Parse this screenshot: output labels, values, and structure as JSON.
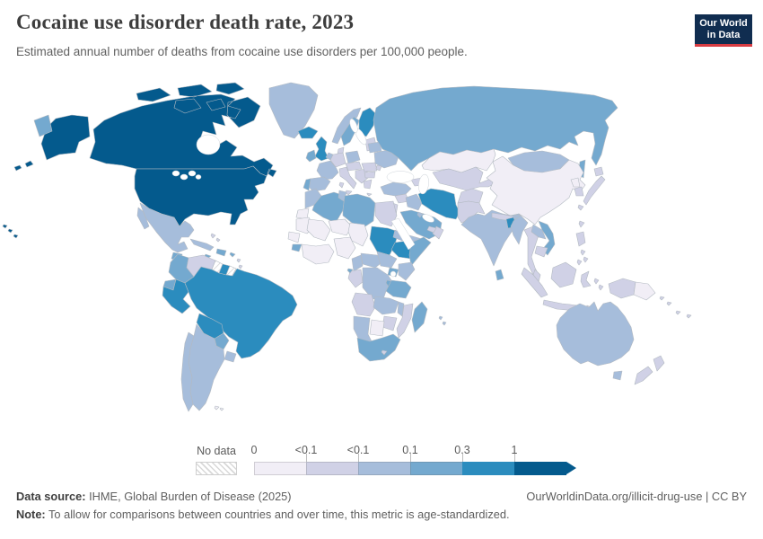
{
  "header": {
    "title": "Cocaine use disorder death rate, 2023",
    "subtitle": "Estimated annual number of deaths from cocaine use disorders per 100,000 people."
  },
  "logo": {
    "line1": "Our World",
    "line2": "in Data"
  },
  "legend": {
    "no_data_label": "No data",
    "tick_labels": [
      "0",
      "<0.1",
      "<0.1",
      "0.1",
      "0.3",
      "1"
    ],
    "colors": [
      "#f1eef6",
      "#d0d1e6",
      "#a6bddb",
      "#74a9cf",
      "#2b8cbe",
      "#045a8d"
    ],
    "no_data_pattern": "diagonal-hatch"
  },
  "footer": {
    "source_label": "Data source:",
    "source_text": " IHME, Global Burden of Disease (2025)",
    "note_label": "Note:",
    "note_text": " To allow for comparisons between countries and over time, this metric is age-standardized.",
    "link_text": "OurWorldinData.org/illicit-drug-use | CC BY"
  },
  "chart_data": {
    "type": "heatmap",
    "subtype": "choropleth-world-map",
    "title": "Cocaine use disorder death rate, 2023",
    "unit": "deaths per 100,000 people",
    "legend_bins": [
      "0",
      "<0.1",
      "<0.1",
      "0.1",
      "0.3",
      "1"
    ],
    "legend_position": "bottom",
    "bin_note": "bin is an index 0-5 into legend colors (light to dark); nd = no data",
    "countries": [
      {
        "id": "canada",
        "bin": 5
      },
      {
        "id": "alaska",
        "bin": 5
      },
      {
        "id": "hawaii",
        "bin": 5
      },
      {
        "id": "united-states",
        "bin": 5
      },
      {
        "id": "greenland",
        "bin": 2
      },
      {
        "id": "iceland",
        "bin": 4
      },
      {
        "id": "russia-east",
        "bin": 3
      },
      {
        "id": "mexico",
        "bin": 2
      },
      {
        "id": "guatemala",
        "bin": 3
      },
      {
        "id": "honduras-nicaragua",
        "bin": 3
      },
      {
        "id": "costa-rica-panama",
        "bin": 4
      },
      {
        "id": "cuba",
        "bin": 2
      },
      {
        "id": "hispaniola",
        "bin": 3
      },
      {
        "id": "jamaica",
        "bin": 3
      },
      {
        "id": "puerto-rico",
        "bin": 3
      },
      {
        "id": "bahamas",
        "bin": 1
      },
      {
        "id": "lesser-antilles",
        "bin": 1
      },
      {
        "id": "colombia",
        "bin": 3
      },
      {
        "id": "venezuela",
        "bin": 1
      },
      {
        "id": "guyana",
        "bin": "nd"
      },
      {
        "id": "suriname",
        "bin": 4
      },
      {
        "id": "french-guiana",
        "bin": "nd"
      },
      {
        "id": "ecuador",
        "bin": 3
      },
      {
        "id": "peru",
        "bin": 4
      },
      {
        "id": "brazil",
        "bin": 4
      },
      {
        "id": "bolivia",
        "bin": 4
      },
      {
        "id": "paraguay",
        "bin": 3
      },
      {
        "id": "uruguay",
        "bin": 2
      },
      {
        "id": "argentina",
        "bin": 2
      },
      {
        "id": "chile",
        "bin": 2
      },
      {
        "id": "falkland-islands",
        "bin": 0
      },
      {
        "id": "united-kingdom",
        "bin": 4
      },
      {
        "id": "ireland",
        "bin": 3
      },
      {
        "id": "norway",
        "bin": 2
      },
      {
        "id": "sweden",
        "bin": 3
      },
      {
        "id": "finland",
        "bin": 4
      },
      {
        "id": "denmark",
        "bin": 1
      },
      {
        "id": "baltic-states",
        "bin": 1
      },
      {
        "id": "germany",
        "bin": 1
      },
      {
        "id": "benelux",
        "bin": 2
      },
      {
        "id": "poland",
        "bin": 2
      },
      {
        "id": "france",
        "bin": 2
      },
      {
        "id": "spain",
        "bin": 2
      },
      {
        "id": "portugal",
        "bin": 3
      },
      {
        "id": "italy",
        "bin": 1
      },
      {
        "id": "sicily",
        "bin": 1
      },
      {
        "id": "sardinia",
        "bin": 1
      },
      {
        "id": "czech-hungary",
        "bin": 1
      },
      {
        "id": "balkans",
        "bin": 1
      },
      {
        "id": "greece",
        "bin": 1
      },
      {
        "id": "crete",
        "bin": 1
      },
      {
        "id": "romania",
        "bin": 1
      },
      {
        "id": "bulgaria",
        "bin": 1
      },
      {
        "id": "ukraine",
        "bin": 2
      },
      {
        "id": "belarus",
        "bin": 2
      },
      {
        "id": "moldova",
        "bin": 1
      },
      {
        "id": "russia",
        "bin": 3
      },
      {
        "id": "sakhalin",
        "bin": 3
      },
      {
        "id": "kazakhstan",
        "bin": 0
      },
      {
        "id": "central-asia",
        "bin": 1
      },
      {
        "id": "caucasus",
        "bin": 1
      },
      {
        "id": "turkey",
        "bin": 2
      },
      {
        "id": "syria",
        "bin": 1
      },
      {
        "id": "levant",
        "bin": 1
      },
      {
        "id": "iraq",
        "bin": 2
      },
      {
        "id": "iran",
        "bin": 4
      },
      {
        "id": "afghanistan",
        "bin": 1
      },
      {
        "id": "pakistan",
        "bin": 1
      },
      {
        "id": "saudi-arabia",
        "bin": 3
      },
      {
        "id": "yemen",
        "bin": 2
      },
      {
        "id": "oman",
        "bin": 1
      },
      {
        "id": "uae",
        "bin": 1
      },
      {
        "id": "kuwait",
        "bin": 2
      },
      {
        "id": "morocco",
        "bin": 2
      },
      {
        "id": "western-sahara",
        "bin": 0
      },
      {
        "id": "algeria",
        "bin": 3
      },
      {
        "id": "tunisia",
        "bin": 2
      },
      {
        "id": "libya",
        "bin": 3
      },
      {
        "id": "egypt",
        "bin": 1
      },
      {
        "id": "mauritania",
        "bin": 0
      },
      {
        "id": "mali",
        "bin": 0
      },
      {
        "id": "niger",
        "bin": 0
      },
      {
        "id": "chad",
        "bin": 0
      },
      {
        "id": "sudan",
        "bin": 4
      },
      {
        "id": "eritrea",
        "bin": 2
      },
      {
        "id": "ethiopia",
        "bin": 4
      },
      {
        "id": "somalia",
        "bin": 3
      },
      {
        "id": "senegal",
        "bin": 0
      },
      {
        "id": "guinea",
        "bin": 3
      },
      {
        "id": "west-africa",
        "bin": 0
      },
      {
        "id": "nigeria",
        "bin": 0
      },
      {
        "id": "cameroon",
        "bin": 2
      },
      {
        "id": "central-african-republic",
        "bin": 2
      },
      {
        "id": "south-sudan",
        "bin": 2
      },
      {
        "id": "uganda",
        "bin": 3
      },
      {
        "id": "kenya",
        "bin": 2
      },
      {
        "id": "gabon-congo",
        "bin": 1
      },
      {
        "id": "equatorial-guinea",
        "bin": 3
      },
      {
        "id": "dr-congo",
        "bin": 2
      },
      {
        "id": "rwanda-burundi",
        "bin": 3
      },
      {
        "id": "tanzania",
        "bin": 3
      },
      {
        "id": "angola",
        "bin": 1
      },
      {
        "id": "zambia",
        "bin": 2
      },
      {
        "id": "malawi",
        "bin": 2
      },
      {
        "id": "mozambique",
        "bin": 1
      },
      {
        "id": "zimbabwe",
        "bin": 1
      },
      {
        "id": "botswana",
        "bin": 0
      },
      {
        "id": "namibia",
        "bin": 2
      },
      {
        "id": "south-africa",
        "bin": 3
      },
      {
        "id": "lesotho",
        "bin": 1
      },
      {
        "id": "madagascar",
        "bin": 3
      },
      {
        "id": "mauritius",
        "bin": 2
      },
      {
        "id": "mongolia",
        "bin": 2
      },
      {
        "id": "china",
        "bin": 0
      },
      {
        "id": "taiwan",
        "bin": 1
      },
      {
        "id": "north-korea",
        "bin": 0
      },
      {
        "id": "south-korea",
        "bin": 1
      },
      {
        "id": "japan",
        "bin": 1
      },
      {
        "id": "india",
        "bin": 2
      },
      {
        "id": "nepal",
        "bin": 1
      },
      {
        "id": "bhutan",
        "bin": 2
      },
      {
        "id": "bangladesh",
        "bin": 4
      },
      {
        "id": "sri-lanka",
        "bin": 3
      },
      {
        "id": "myanmar",
        "bin": 2
      },
      {
        "id": "thailand",
        "bin": 1
      },
      {
        "id": "laos",
        "bin": 2
      },
      {
        "id": "vietnam",
        "bin": 3
      },
      {
        "id": "cambodia",
        "bin": 1
      },
      {
        "id": "malaysia",
        "bin": 1
      },
      {
        "id": "borneo",
        "bin": 1
      },
      {
        "id": "sumatra",
        "bin": 1
      },
      {
        "id": "java",
        "bin": 1
      },
      {
        "id": "sulawesi",
        "bin": 1
      },
      {
        "id": "moluccas",
        "bin": 1
      },
      {
        "id": "timor",
        "bin": 1
      },
      {
        "id": "philippines",
        "bin": 1
      },
      {
        "id": "indonesian-papua",
        "bin": 1
      },
      {
        "id": "papua-new-guinea",
        "bin": 0
      },
      {
        "id": "pacific-islands",
        "bin": 1
      },
      {
        "id": "australia",
        "bin": 2
      },
      {
        "id": "tasmania",
        "bin": 2
      },
      {
        "id": "new-zealand",
        "bin": 1
      }
    ]
  }
}
